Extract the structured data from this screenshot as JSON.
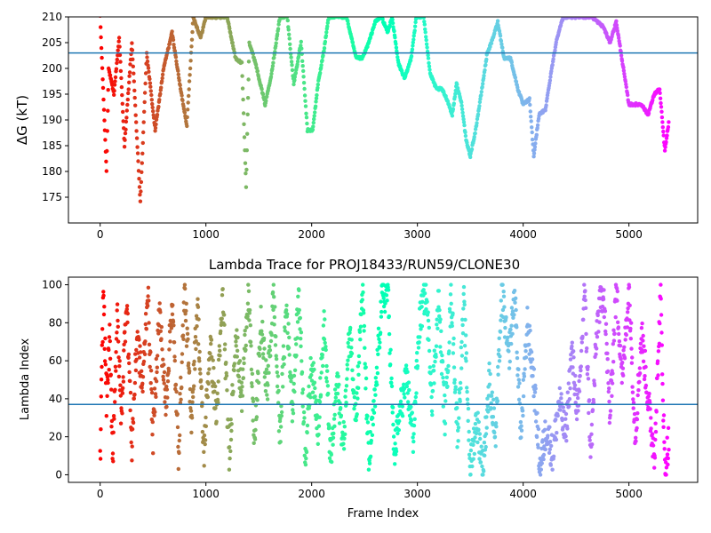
{
  "chart_data": [
    {
      "type": "scatter",
      "title": "",
      "xlabel": "",
      "ylabel": "ΔG (kT)",
      "xlim": [
        -300,
        5650
      ],
      "ylim": [
        170,
        210
      ],
      "xticks": [
        0,
        1000,
        2000,
        3000,
        4000,
        5000
      ],
      "yticks": [
        175,
        180,
        185,
        190,
        195,
        200,
        205,
        210
      ],
      "colormap": "rainbow",
      "reference_line": {
        "y": 203,
        "color": "#1f77b4"
      },
      "grid": false,
      "trace": [
        [
          0,
          210
        ],
        [
          60,
          180
        ],
        [
          80,
          200
        ],
        [
          130,
          195
        ],
        [
          180,
          206
        ],
        [
          230,
          185
        ],
        [
          300,
          205
        ],
        [
          380,
          174
        ],
        [
          440,
          203
        ],
        [
          520,
          188
        ],
        [
          600,
          200
        ],
        [
          680,
          207
        ],
        [
          760,
          196
        ],
        [
          820,
          189
        ],
        [
          880,
          210
        ],
        [
          950,
          206
        ],
        [
          1000,
          210
        ],
        [
          1100,
          210
        ],
        [
          1200,
          210
        ],
        [
          1280,
          202
        ],
        [
          1340,
          201
        ],
        [
          1380,
          177
        ],
        [
          1410,
          205
        ],
        [
          1470,
          201
        ],
        [
          1560,
          193
        ],
        [
          1620,
          199
        ],
        [
          1700,
          210
        ],
        [
          1770,
          210
        ],
        [
          1830,
          197
        ],
        [
          1900,
          205
        ],
        [
          1960,
          188
        ],
        [
          2010,
          188
        ],
        [
          2060,
          197
        ],
        [
          2120,
          204
        ],
        [
          2160,
          210
        ],
        [
          2250,
          210
        ],
        [
          2330,
          210
        ],
        [
          2420,
          202
        ],
        [
          2480,
          202
        ],
        [
          2540,
          205
        ],
        [
          2600,
          209
        ],
        [
          2660,
          210
        ],
        [
          2720,
          207
        ],
        [
          2760,
          210
        ],
        [
          2820,
          201
        ],
        [
          2880,
          198
        ],
        [
          2940,
          202
        ],
        [
          2990,
          210
        ],
        [
          3060,
          210
        ],
        [
          3120,
          199
        ],
        [
          3180,
          196
        ],
        [
          3230,
          196
        ],
        [
          3280,
          194
        ],
        [
          3330,
          191
        ],
        [
          3370,
          197
        ],
        [
          3420,
          193
        ],
        [
          3460,
          186
        ],
        [
          3500,
          183
        ],
        [
          3550,
          188
        ],
        [
          3610,
          196
        ],
        [
          3660,
          203
        ],
        [
          3700,
          205
        ],
        [
          3760,
          209
        ],
        [
          3820,
          202
        ],
        [
          3880,
          202
        ],
        [
          3950,
          196
        ],
        [
          4000,
          193
        ],
        [
          4060,
          194
        ],
        [
          4100,
          183
        ],
        [
          4150,
          191
        ],
        [
          4210,
          192
        ],
        [
          4270,
          200
        ],
        [
          4320,
          206
        ],
        [
          4380,
          210
        ],
        [
          4450,
          210
        ],
        [
          4550,
          210
        ],
        [
          4650,
          210
        ],
        [
          4760,
          208
        ],
        [
          4820,
          205
        ],
        [
          4880,
          209
        ],
        [
          4940,
          201
        ],
        [
          5000,
          193
        ],
        [
          5060,
          193
        ],
        [
          5120,
          193
        ],
        [
          5180,
          191
        ],
        [
          5240,
          195
        ],
        [
          5290,
          196
        ],
        [
          5340,
          184
        ],
        [
          5380,
          190
        ]
      ]
    },
    {
      "type": "scatter",
      "title": "Lambda Trace for PROJ18433/RUN59/CLONE30",
      "xlabel": "Frame Index",
      "ylabel": "Lambda Index",
      "xlim": [
        -300,
        5650
      ],
      "ylim": [
        -4,
        104
      ],
      "xticks": [
        0,
        1000,
        2000,
        3000,
        4000,
        5000
      ],
      "yticks": [
        0,
        20,
        40,
        60,
        80,
        100
      ],
      "colormap": "rainbow",
      "reference_line": {
        "y": 37,
        "color": "#1f77b4"
      },
      "grid": false,
      "trace": [
        [
          0,
          5
        ],
        [
          30,
          98
        ],
        [
          60,
          40
        ],
        [
          90,
          70
        ],
        [
          120,
          10
        ],
        [
          160,
          85
        ],
        [
          200,
          30
        ],
        [
          250,
          95
        ],
        [
          300,
          15
        ],
        [
          350,
          75
        ],
        [
          400,
          45
        ],
        [
          450,
          98
        ],
        [
          500,
          20
        ],
        [
          560,
          88
        ],
        [
          620,
          35
        ],
        [
          680,
          92
        ],
        [
          740,
          12
        ],
        [
          800,
          98
        ],
        [
          860,
          28
        ],
        [
          920,
          90
        ],
        [
          980,
          10
        ],
        [
          1040,
          70
        ],
        [
          1100,
          30
        ],
        [
          1160,
          95
        ],
        [
          1220,
          8
        ],
        [
          1280,
          75
        ],
        [
          1340,
          40
        ],
        [
          1400,
          98
        ],
        [
          1460,
          15
        ],
        [
          1520,
          80
        ],
        [
          1580,
          45
        ],
        [
          1640,
          95
        ],
        [
          1700,
          20
        ],
        [
          1760,
          90
        ],
        [
          1820,
          35
        ],
        [
          1880,
          96
        ],
        [
          1940,
          10
        ],
        [
          2000,
          60
        ],
        [
          2060,
          25
        ],
        [
          2120,
          80
        ],
        [
          2180,
          5
        ],
        [
          2240,
          50
        ],
        [
          2300,
          15
        ],
        [
          2360,
          78
        ],
        [
          2420,
          30
        ],
        [
          2480,
          99
        ],
        [
          2540,
          5
        ],
        [
          2600,
          40
        ],
        [
          2660,
          90
        ],
        [
          2720,
          98
        ],
        [
          2780,
          10
        ],
        [
          2840,
          35
        ],
        [
          2900,
          50
        ],
        [
          2960,
          20
        ],
        [
          3020,
          80
        ],
        [
          3080,
          98
        ],
        [
          3140,
          40
        ],
        [
          3200,
          92
        ],
        [
          3260,
          30
        ],
        [
          3320,
          95
        ],
        [
          3380,
          20
        ],
        [
          3440,
          90
        ],
        [
          3500,
          3
        ],
        [
          3560,
          30
        ],
        [
          3620,
          3
        ],
        [
          3680,
          50
        ],
        [
          3740,
          20
        ],
        [
          3800,
          98
        ],
        [
          3860,
          60
        ],
        [
          3920,
          95
        ],
        [
          3980,
          20
        ],
        [
          4040,
          80
        ],
        [
          4100,
          50
        ],
        [
          4160,
          3
        ],
        [
          4220,
          25
        ],
        [
          4280,
          10
        ],
        [
          4340,
          40
        ],
        [
          4400,
          20
        ],
        [
          4460,
          65
        ],
        [
          4520,
          30
        ],
        [
          4580,
          98
        ],
        [
          4640,
          10
        ],
        [
          4700,
          80
        ],
        [
          4760,
          99
        ],
        [
          4820,
          30
        ],
        [
          4880,
          98
        ],
        [
          4940,
          50
        ],
        [
          5000,
          99
        ],
        [
          5060,
          20
        ],
        [
          5120,
          75
        ],
        [
          5180,
          40
        ],
        [
          5240,
          10
        ],
        [
          5300,
          95
        ],
        [
          5340,
          2
        ],
        [
          5380,
          20
        ]
      ]
    }
  ]
}
